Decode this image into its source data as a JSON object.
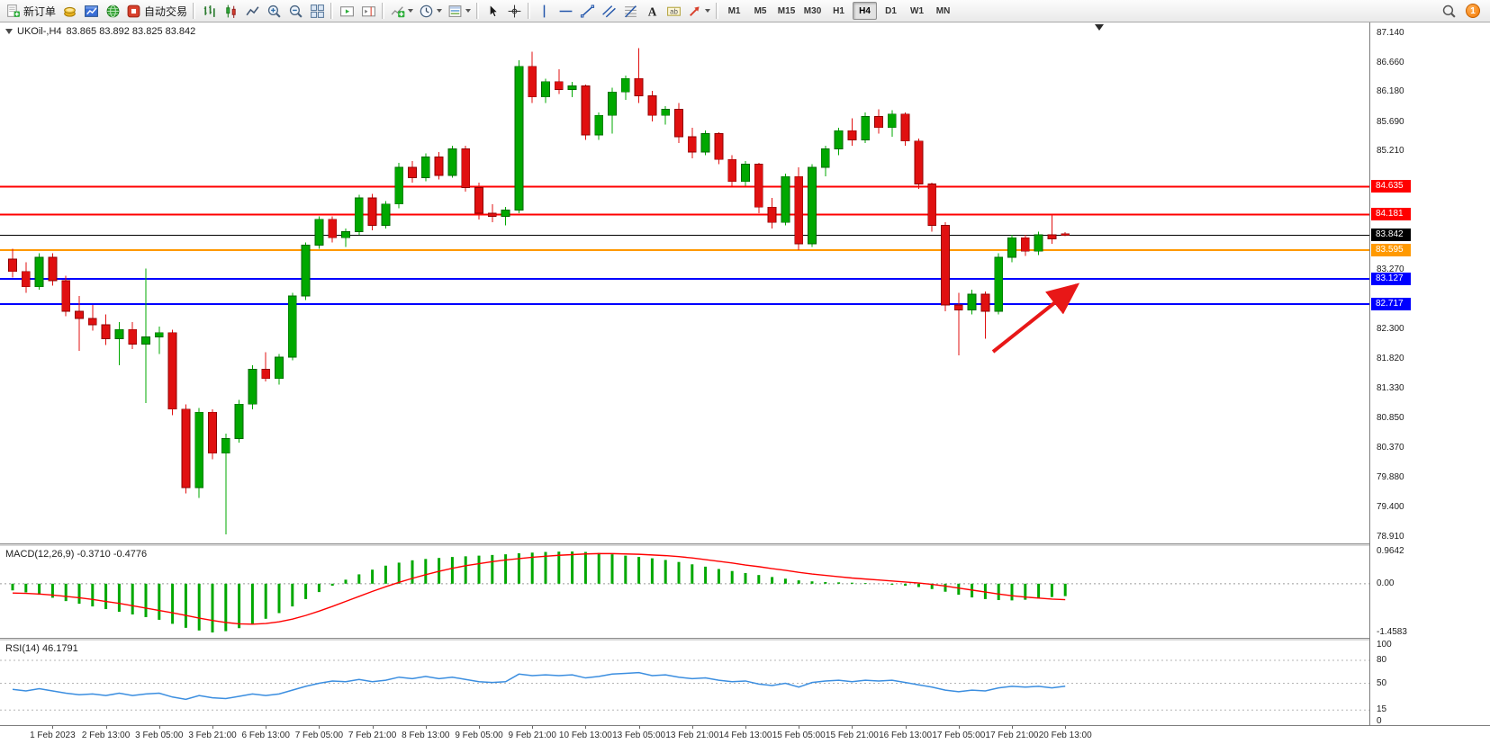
{
  "toolbar": {
    "new_order": "新订单",
    "autotrading": "自动交易",
    "timeframes": [
      "M1",
      "M5",
      "M15",
      "M30",
      "H1",
      "H4",
      "D1",
      "W1",
      "MN"
    ],
    "active_timeframe": "H4",
    "notification_count": "1"
  },
  "chart_header": {
    "symbol": "UKOil-,H4",
    "ohlc": "83.865 83.892 83.825 83.842"
  },
  "price_axis": {
    "labels": [
      "87.140",
      "86.660",
      "86.180",
      "85.690",
      "85.210",
      "83.270",
      "82.300",
      "81.820",
      "81.330",
      "80.850",
      "80.370",
      "79.880",
      "79.400",
      "78.910"
    ]
  },
  "levels": [
    {
      "price": 84.635,
      "label": "84.635",
      "color": "#ff0000"
    },
    {
      "price": 84.181,
      "label": "84.181",
      "color": "#ff0000"
    },
    {
      "price": 83.842,
      "label": "83.842",
      "color": "#000000"
    },
    {
      "price": 83.595,
      "label": "83.595",
      "color": "#ff9900"
    },
    {
      "price": 83.127,
      "label": "83.127",
      "color": "#0000ff"
    },
    {
      "price": 82.717,
      "label": "82.717",
      "color": "#0000ff"
    }
  ],
  "macd_panel": {
    "label": "MACD(12,26,9) -0.3710 -0.4776",
    "scale_max": "0.9642",
    "scale_zero": "0.00",
    "sc_max_val": 0.9642,
    "sc_min_val": -1.4583,
    "scale_min": "-1.4583"
  },
  "rsi_panel": {
    "label": "RSI(14) 46.1791",
    "scale": [
      "100",
      "80",
      "50",
      "15",
      "0"
    ],
    "levels": [
      80,
      50,
      15
    ]
  },
  "time_axis": [
    "1 Feb 2023",
    "2 Feb 13:00",
    "3 Feb 05:00",
    "3 Feb 21:00",
    "6 Feb 13:00",
    "7 Feb 05:00",
    "7 Feb 21:00",
    "8 Feb 13:00",
    "9 Feb 05:00",
    "9 Feb 21:00",
    "10 Feb 13:00",
    "13 Feb 05:00",
    "13 Feb 21:00",
    "14 Feb 13:00",
    "15 Feb 05:00",
    "15 Feb 21:00",
    "16 Feb 13:00",
    "17 Feb 05:00",
    "17 Feb 21:00",
    "20 Feb 13:00"
  ],
  "colors": {
    "up": "#00a800",
    "up_border": "#006600",
    "down": "#e01010",
    "down_border": "#8e0000",
    "macd_hist": "#00a800",
    "macd_signal": "#ff0000",
    "rsi_line": "#3b8ee0",
    "arrow": "#e81717"
  },
  "chart_data": {
    "type": "candlestick",
    "symbol": "UKOil-",
    "timeframe": "H4",
    "price_range": [
      78.81,
      87.32
    ],
    "macd_range": [
      -1.4583,
      0.9642
    ],
    "rsi_range": [
      0,
      100
    ],
    "candles": [
      [
        83.45,
        83.62,
        83.15,
        83.25
      ],
      [
        83.25,
        83.4,
        82.9,
        83.0
      ],
      [
        83.0,
        83.55,
        82.95,
        83.48
      ],
      [
        83.48,
        83.55,
        83.02,
        83.1
      ],
      [
        83.1,
        83.18,
        82.52,
        82.6
      ],
      [
        82.6,
        82.85,
        81.95,
        82.48
      ],
      [
        82.48,
        82.7,
        82.28,
        82.38
      ],
      [
        82.38,
        82.55,
        82.05,
        82.15
      ],
      [
        82.15,
        82.42,
        81.72,
        82.3
      ],
      [
        82.3,
        82.42,
        81.98,
        82.06
      ],
      [
        82.06,
        83.3,
        81.1,
        82.18
      ],
      [
        82.18,
        82.35,
        81.9,
        82.25
      ],
      [
        82.25,
        82.3,
        80.9,
        81.0
      ],
      [
        81.0,
        81.08,
        79.62,
        79.72
      ],
      [
        79.72,
        81.02,
        79.55,
        80.95
      ],
      [
        80.95,
        81.0,
        80.18,
        80.28
      ],
      [
        80.28,
        80.6,
        78.95,
        80.52
      ],
      [
        80.52,
        81.15,
        80.45,
        81.08
      ],
      [
        81.08,
        81.72,
        81.0,
        81.65
      ],
      [
        81.65,
        81.93,
        81.45,
        81.5
      ],
      [
        81.5,
        81.9,
        81.4,
        81.85
      ],
      [
        81.85,
        82.9,
        81.8,
        82.85
      ],
      [
        82.85,
        83.72,
        82.78,
        83.68
      ],
      [
        83.68,
        84.15,
        83.62,
        84.1
      ],
      [
        84.1,
        84.15,
        83.72,
        83.8
      ],
      [
        83.8,
        83.95,
        83.65,
        83.9
      ],
      [
        83.9,
        84.5,
        83.85,
        84.45
      ],
      [
        84.45,
        84.52,
        83.92,
        84.0
      ],
      [
        84.0,
        84.4,
        83.95,
        84.35
      ],
      [
        84.35,
        85.02,
        84.28,
        84.95
      ],
      [
        84.95,
        85.05,
        84.7,
        84.78
      ],
      [
        84.78,
        85.18,
        84.72,
        85.12
      ],
      [
        85.12,
        85.2,
        84.75,
        84.82
      ],
      [
        84.82,
        85.3,
        84.78,
        85.25
      ],
      [
        85.25,
        85.3,
        84.55,
        84.62
      ],
      [
        84.62,
        84.7,
        84.1,
        84.2
      ],
      [
        84.2,
        84.35,
        84.05,
        84.15
      ],
      [
        84.15,
        84.3,
        84.0,
        84.25
      ],
      [
        84.25,
        86.7,
        84.2,
        86.6
      ],
      [
        86.6,
        86.84,
        86.0,
        86.1
      ],
      [
        86.1,
        86.4,
        86.0,
        86.35
      ],
      [
        86.35,
        86.55,
        86.15,
        86.22
      ],
      [
        86.22,
        86.35,
        86.1,
        86.28
      ],
      [
        86.28,
        86.3,
        85.4,
        85.48
      ],
      [
        85.48,
        85.85,
        85.4,
        85.8
      ],
      [
        85.8,
        86.25,
        85.5,
        86.18
      ],
      [
        86.18,
        86.45,
        86.05,
        86.4
      ],
      [
        86.4,
        86.9,
        86.0,
        86.12
      ],
      [
        86.12,
        86.2,
        85.7,
        85.8
      ],
      [
        85.8,
        85.95,
        85.65,
        85.9
      ],
      [
        85.9,
        86.0,
        85.35,
        85.45
      ],
      [
        85.45,
        85.6,
        85.1,
        85.2
      ],
      [
        85.2,
        85.55,
        85.15,
        85.5
      ],
      [
        85.5,
        85.52,
        85.0,
        85.08
      ],
      [
        85.08,
        85.15,
        84.65,
        84.72
      ],
      [
        84.72,
        85.05,
        84.65,
        85.0
      ],
      [
        85.0,
        85.02,
        84.2,
        84.3
      ],
      [
        84.3,
        84.45,
        83.95,
        84.05
      ],
      [
        84.05,
        84.85,
        84.0,
        84.8
      ],
      [
        84.8,
        84.95,
        83.6,
        83.7
      ],
      [
        83.7,
        85.0,
        83.65,
        84.95
      ],
      [
        84.95,
        85.3,
        84.8,
        85.25
      ],
      [
        85.25,
        85.6,
        85.15,
        85.55
      ],
      [
        85.55,
        85.75,
        85.3,
        85.4
      ],
      [
        85.4,
        85.85,
        85.35,
        85.78
      ],
      [
        85.78,
        85.9,
        85.5,
        85.6
      ],
      [
        85.6,
        85.88,
        85.45,
        85.82
      ],
      [
        85.82,
        85.85,
        85.3,
        85.38
      ],
      [
        85.38,
        85.42,
        84.6,
        84.68
      ],
      [
        84.68,
        84.7,
        83.9,
        84.0
      ],
      [
        84.0,
        84.05,
        82.6,
        82.7
      ],
      [
        82.7,
        82.9,
        81.88,
        82.62
      ],
      [
        82.62,
        82.95,
        82.55,
        82.88
      ],
      [
        82.88,
        82.92,
        82.15,
        82.6
      ],
      [
        82.6,
        83.55,
        82.55,
        83.48
      ],
      [
        83.48,
        83.85,
        83.4,
        83.8
      ],
      [
        83.8,
        83.85,
        83.5,
        83.58
      ],
      [
        83.58,
        83.9,
        83.52,
        83.85
      ],
      [
        83.85,
        84.18,
        83.7,
        83.78
      ],
      [
        83.865,
        83.892,
        83.825,
        83.842
      ]
    ],
    "macd_hist": [
      -0.2,
      -0.26,
      -0.33,
      -0.42,
      -0.52,
      -0.6,
      -0.68,
      -0.76,
      -0.84,
      -0.92,
      -1.0,
      -1.08,
      -1.2,
      -1.32,
      -1.4,
      -1.4583,
      -1.42,
      -1.33,
      -1.2,
      -1.05,
      -0.88,
      -0.68,
      -0.46,
      -0.25,
      -0.06,
      0.12,
      0.28,
      0.42,
      0.54,
      0.63,
      0.7,
      0.74,
      0.77,
      0.8,
      0.82,
      0.84,
      0.86,
      0.88,
      0.91,
      0.93,
      0.95,
      0.96,
      0.9642,
      0.95,
      0.92,
      0.88,
      0.84,
      0.8,
      0.76,
      0.71,
      0.65,
      0.58,
      0.51,
      0.44,
      0.38,
      0.32,
      0.26,
      0.2,
      0.15,
      0.1,
      0.07,
      0.05,
      0.04,
      0.03,
      0.02,
      0.0,
      -0.03,
      -0.06,
      -0.1,
      -0.16,
      -0.24,
      -0.33,
      -0.41,
      -0.46,
      -0.49,
      -0.5,
      -0.48,
      -0.44,
      -0.4,
      -0.371
    ],
    "macd_signal": [
      -0.28,
      -0.29,
      -0.31,
      -0.34,
      -0.38,
      -0.42,
      -0.47,
      -0.53,
      -0.59,
      -0.66,
      -0.73,
      -0.8,
      -0.87,
      -0.95,
      -1.03,
      -1.1,
      -1.16,
      -1.2,
      -1.21,
      -1.19,
      -1.14,
      -1.06,
      -0.95,
      -0.82,
      -0.68,
      -0.53,
      -0.38,
      -0.23,
      -0.09,
      0.04,
      0.16,
      0.27,
      0.37,
      0.46,
      0.54,
      0.6,
      0.66,
      0.71,
      0.75,
      0.79,
      0.82,
      0.85,
      0.87,
      0.89,
      0.9,
      0.9,
      0.89,
      0.88,
      0.86,
      0.84,
      0.81,
      0.77,
      0.72,
      0.67,
      0.62,
      0.56,
      0.51,
      0.45,
      0.4,
      0.34,
      0.29,
      0.25,
      0.21,
      0.17,
      0.14,
      0.11,
      0.08,
      0.05,
      0.02,
      -0.02,
      -0.07,
      -0.13,
      -0.19,
      -0.25,
      -0.31,
      -0.36,
      -0.4,
      -0.43,
      -0.46,
      -0.4776
    ],
    "rsi": [
      42,
      40,
      43,
      40,
      37,
      35,
      36,
      34,
      37,
      34,
      36,
      37,
      32,
      29,
      34,
      31,
      30,
      33,
      36,
      34,
      36,
      41,
      46,
      50,
      53,
      52,
      55,
      52,
      54,
      58,
      56,
      59,
      56,
      58,
      55,
      52,
      51,
      52,
      62,
      60,
      61,
      60,
      61,
      57,
      59,
      62,
      63,
      64,
      60,
      61,
      58,
      56,
      57,
      54,
      52,
      53,
      49,
      47,
      50,
      45,
      51,
      53,
      54,
      52,
      54,
      53,
      54,
      51,
      48,
      45,
      41,
      39,
      41,
      40,
      44,
      46,
      45,
      46,
      44,
      46.18
    ],
    "annotation_arrow": {
      "from_price": 81.9,
      "to_price": 83.05,
      "direction": "up-right"
    }
  }
}
